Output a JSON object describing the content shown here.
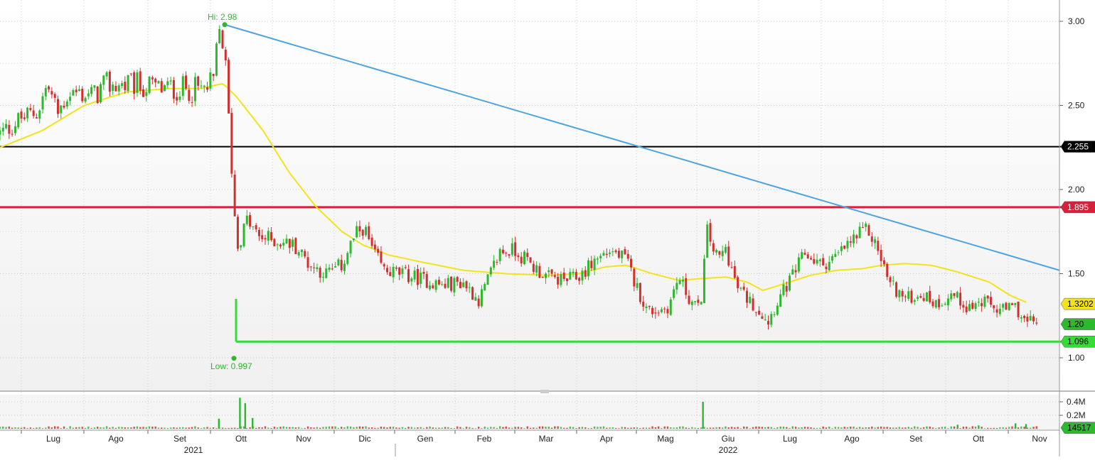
{
  "chart_data": {
    "type": "candlestick",
    "title": "",
    "xlabel": "",
    "ylabel": "",
    "grid": true,
    "colors": {
      "up": "#2eb82e",
      "down": "#d42f2f",
      "moving_average": "#f2e31c",
      "trendline": "#4ea3e0",
      "resistance": "#d8203a",
      "pivot": "#000000",
      "support": "#33dd33",
      "annotation": "#2eb82e",
      "background": "#ffffff",
      "panel_gradient": "#eeeeee"
    },
    "price_axis": {
      "ylim": [
        0.9,
        3.1
      ],
      "ticks": [
        "1.00",
        "1.50",
        "2.00",
        "2.50",
        "3.00"
      ],
      "position": "right"
    },
    "volume_axis": {
      "ylim": [
        0,
        480000
      ],
      "ticks": [
        "0.4M",
        "0.2M"
      ],
      "position": "right"
    },
    "x_axis": {
      "months": [
        "Lug",
        "Ago",
        "Set",
        "Ott",
        "Nov",
        "Dic",
        "Gen",
        "Feb",
        "Mar",
        "Apr",
        "Mag",
        "Giu",
        "Lug",
        "Ago",
        "Set",
        "Ott",
        "Nov"
      ],
      "years": [
        "2021",
        "2022"
      ]
    },
    "annotations": {
      "high_label": "Hi: 2.98",
      "high_value": 2.98,
      "low_label": "Low: 0.997",
      "low_value": 0.997
    },
    "levels": [
      {
        "value": 2.255,
        "label": "2.255",
        "role": "pivot"
      },
      {
        "value": 1.895,
        "label": "1.895",
        "role": "resistance"
      },
      {
        "value": 1.096,
        "label": "1.096",
        "role": "support"
      }
    ],
    "last_values": {
      "moving_average": "1.3202",
      "price": "1.20",
      "volume": "14517"
    },
    "trendline": {
      "start": 2.98,
      "end": 1.52
    },
    "price_path": [
      [
        0.0,
        2.33
      ],
      [
        0.02,
        2.42
      ],
      [
        0.035,
        2.46
      ],
      [
        0.045,
        2.62
      ],
      [
        0.055,
        2.45
      ],
      [
        0.065,
        2.58
      ],
      [
        0.09,
        2.56
      ],
      [
        0.1,
        2.62
      ],
      [
        0.13,
        2.62
      ],
      [
        0.155,
        2.6
      ],
      [
        0.175,
        2.6
      ],
      [
        0.195,
        2.59
      ],
      [
        0.203,
        2.64
      ],
      [
        0.208,
        2.95
      ],
      [
        0.213,
        2.85
      ],
      [
        0.225,
        1.65
      ],
      [
        0.235,
        1.82
      ],
      [
        0.245,
        1.72
      ],
      [
        0.26,
        1.7
      ],
      [
        0.28,
        1.67
      ],
      [
        0.295,
        1.55
      ],
      [
        0.31,
        1.5
      ],
      [
        0.325,
        1.55
      ],
      [
        0.335,
        1.7
      ],
      [
        0.345,
        1.78
      ],
      [
        0.355,
        1.62
      ],
      [
        0.365,
        1.52
      ],
      [
        0.38,
        1.5
      ],
      [
        0.4,
        1.47
      ],
      [
        0.42,
        1.43
      ],
      [
        0.44,
        1.45
      ],
      [
        0.455,
        1.34
      ],
      [
        0.465,
        1.48
      ],
      [
        0.475,
        1.63
      ],
      [
        0.49,
        1.64
      ],
      [
        0.505,
        1.55
      ],
      [
        0.52,
        1.48
      ],
      [
        0.535,
        1.46
      ],
      [
        0.55,
        1.48
      ],
      [
        0.565,
        1.58
      ],
      [
        0.58,
        1.64
      ],
      [
        0.595,
        1.58
      ],
      [
        0.605,
        1.42
      ],
      [
        0.615,
        1.28
      ],
      [
        0.625,
        1.28
      ],
      [
        0.635,
        1.3
      ],
      [
        0.645,
        1.48
      ],
      [
        0.655,
        1.35
      ],
      [
        0.665,
        1.28
      ],
      [
        0.672,
        1.75
      ],
      [
        0.682,
        1.58
      ],
      [
        0.69,
        1.65
      ],
      [
        0.7,
        1.42
      ],
      [
        0.715,
        1.32
      ],
      [
        0.73,
        1.22
      ],
      [
        0.74,
        1.35
      ],
      [
        0.75,
        1.45
      ],
      [
        0.765,
        1.62
      ],
      [
        0.78,
        1.55
      ],
      [
        0.795,
        1.6
      ],
      [
        0.81,
        1.7
      ],
      [
        0.825,
        1.76
      ],
      [
        0.835,
        1.63
      ],
      [
        0.845,
        1.45
      ],
      [
        0.86,
        1.35
      ],
      [
        0.875,
        1.38
      ],
      [
        0.89,
        1.32
      ],
      [
        0.905,
        1.38
      ],
      [
        0.92,
        1.3
      ],
      [
        0.935,
        1.33
      ],
      [
        0.95,
        1.28
      ],
      [
        0.965,
        1.3
      ],
      [
        0.975,
        1.21
      ],
      [
        0.985,
        1.22
      ]
    ],
    "moving_average_path": [
      [
        0.0,
        2.25
      ],
      [
        0.04,
        2.35
      ],
      [
        0.08,
        2.5
      ],
      [
        0.12,
        2.58
      ],
      [
        0.16,
        2.6
      ],
      [
        0.19,
        2.6
      ],
      [
        0.212,
        2.63
      ],
      [
        0.225,
        2.55
      ],
      [
        0.25,
        2.35
      ],
      [
        0.275,
        2.1
      ],
      [
        0.3,
        1.9
      ],
      [
        0.325,
        1.75
      ],
      [
        0.345,
        1.67
      ],
      [
        0.37,
        1.61
      ],
      [
        0.4,
        1.57
      ],
      [
        0.44,
        1.52
      ],
      [
        0.48,
        1.5
      ],
      [
        0.52,
        1.49
      ],
      [
        0.55,
        1.5
      ],
      [
        0.575,
        1.54
      ],
      [
        0.595,
        1.55
      ],
      [
        0.62,
        1.5
      ],
      [
        0.645,
        1.46
      ],
      [
        0.665,
        1.47
      ],
      [
        0.69,
        1.48
      ],
      [
        0.71,
        1.45
      ],
      [
        0.725,
        1.4
      ],
      [
        0.745,
        1.44
      ],
      [
        0.77,
        1.49
      ],
      [
        0.795,
        1.52
      ],
      [
        0.82,
        1.53
      ],
      [
        0.838,
        1.55
      ],
      [
        0.86,
        1.56
      ],
      [
        0.885,
        1.55
      ],
      [
        0.91,
        1.51
      ],
      [
        0.94,
        1.45
      ],
      [
        0.96,
        1.37
      ],
      [
        0.975,
        1.33
      ]
    ],
    "volume_spikes": [
      [
        0.208,
        150000
      ],
      [
        0.228,
        460000
      ],
      [
        0.233,
        380000
      ],
      [
        0.24,
        160000
      ],
      [
        0.668,
        400000
      ],
      [
        0.91,
        60000
      ],
      [
        0.93,
        50000
      ],
      [
        0.965,
        80000
      ],
      [
        0.975,
        70000
      ]
    ]
  }
}
